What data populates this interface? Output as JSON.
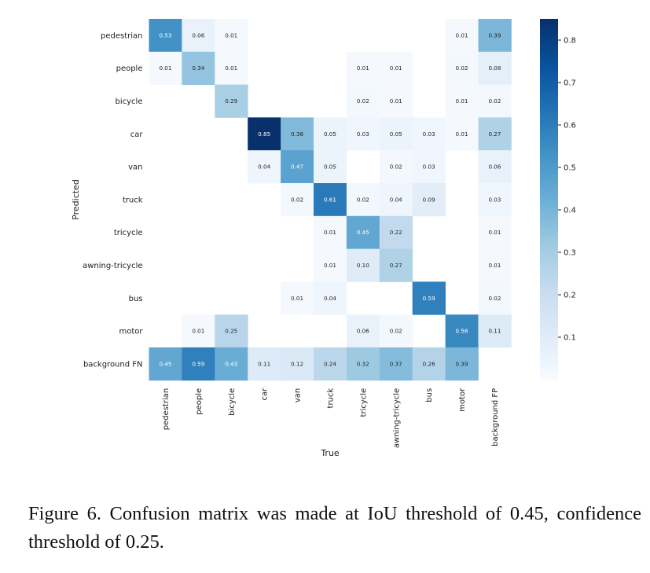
{
  "chart_data": {
    "type": "heatmap",
    "title": "",
    "xlabel": "True",
    "ylabel": "Predicted",
    "x_categories": [
      "pedestrian",
      "people",
      "bicycle",
      "car",
      "van",
      "truck",
      "tricycle",
      "awning-tricycle",
      "bus",
      "motor",
      "background FP"
    ],
    "y_categories": [
      "pedestrian",
      "people",
      "bicycle",
      "car",
      "van",
      "truck",
      "tricycle",
      "awning-tricycle",
      "bus",
      "motor",
      "background FN"
    ],
    "values": [
      [
        0.53,
        0.06,
        0.01,
        null,
        null,
        null,
        null,
        null,
        null,
        0.01,
        0.39
      ],
      [
        0.01,
        0.34,
        0.01,
        null,
        null,
        null,
        0.01,
        0.01,
        null,
        0.02,
        0.08
      ],
      [
        null,
        null,
        0.29,
        null,
        null,
        null,
        0.02,
        0.01,
        null,
        0.01,
        0.02
      ],
      [
        null,
        null,
        null,
        0.85,
        0.38,
        0.05,
        0.03,
        0.05,
        0.03,
        0.01,
        0.27
      ],
      [
        null,
        null,
        null,
        0.04,
        0.47,
        0.05,
        null,
        0.02,
        0.03,
        null,
        0.06
      ],
      [
        null,
        null,
        null,
        null,
        0.02,
        0.61,
        0.02,
        0.04,
        0.09,
        null,
        0.03
      ],
      [
        null,
        null,
        null,
        null,
        null,
        0.01,
        0.45,
        0.22,
        null,
        null,
        0.01
      ],
      [
        null,
        null,
        null,
        null,
        null,
        0.01,
        0.1,
        0.27,
        null,
        null,
        0.01
      ],
      [
        null,
        null,
        null,
        null,
        0.01,
        0.04,
        null,
        null,
        0.59,
        null,
        0.02
      ],
      [
        null,
        0.01,
        0.25,
        null,
        null,
        null,
        0.06,
        0.02,
        null,
        0.56,
        0.11
      ],
      [
        0.45,
        0.59,
        0.43,
        0.11,
        0.12,
        0.24,
        0.32,
        0.37,
        0.26,
        0.39,
        null
      ]
    ],
    "colorbar": {
      "colormap": "Blues",
      "range": [
        0,
        0.85
      ],
      "ticks": [
        0.1,
        0.2,
        0.3,
        0.4,
        0.5,
        0.6,
        0.7,
        0.8
      ],
      "tick_labels": [
        "0.1",
        "0.2",
        "0.3",
        "0.4",
        "0.5",
        "0.6",
        "0.7",
        "0.8"
      ]
    }
  },
  "caption": "Figure 6. Confusion matrix was made at IoU threshold of 0.45, confidence threshold of 0.25."
}
